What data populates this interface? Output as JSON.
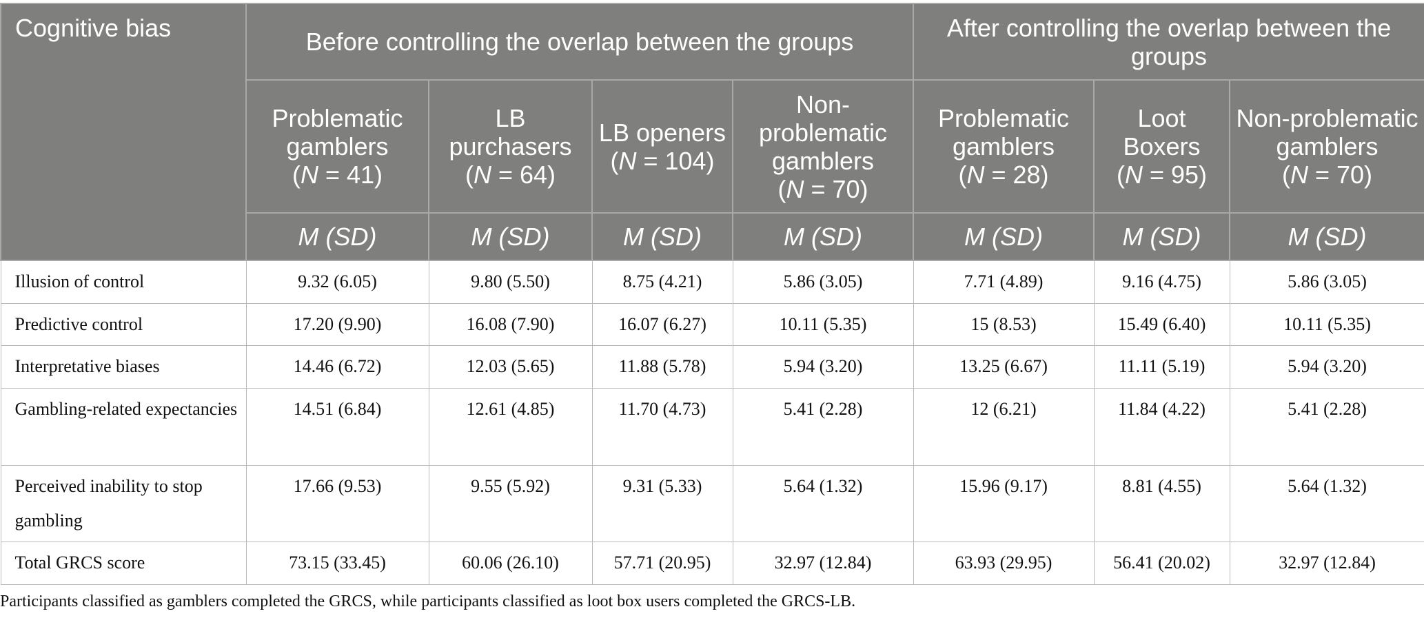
{
  "table": {
    "corner": "Cognitive bias",
    "groups": [
      "Before controlling the overlap between the groups",
      "After controlling the overlap between the groups"
    ],
    "subgroups": [
      {
        "name": "Problematic gamblers",
        "n": [
          "(",
          "N",
          " = 41)"
        ]
      },
      {
        "name": "LB purchasers",
        "n": [
          "(",
          "N",
          " = 64)"
        ]
      },
      {
        "name": "LB openers",
        "n": [
          "(",
          "N",
          " = 104)"
        ]
      },
      {
        "name": "Non-problematic gamblers",
        "n": [
          "(",
          "N",
          " = 70)"
        ]
      },
      {
        "name": "Problematic gamblers",
        "n": [
          "(",
          "N",
          " = 28)"
        ]
      },
      {
        "name": "Loot Boxers",
        "n": [
          "(",
          "N",
          " = 95)"
        ]
      },
      {
        "name": "Non-problematic gamblers",
        "n": [
          "(",
          "N",
          " = 70)"
        ]
      }
    ],
    "stats": [
      "M (SD)",
      "M (SD)",
      "M (SD)",
      "M (SD)",
      "M (SD)",
      "M (SD)",
      "M (SD)"
    ],
    "rows": [
      [
        "Illusion of control",
        "9.32 (6.05)",
        "9.80 (5.50)",
        "8.75 (4.21)",
        "5.86 (3.05)",
        "7.71 (4.89)",
        "9.16 (4.75)",
        "5.86 (3.05)"
      ],
      [
        "Predictive control",
        "17.20 (9.90)",
        "16.08 (7.90)",
        "16.07 (6.27)",
        "10.11 (5.35)",
        "15 (8.53)",
        "15.49 (6.40)",
        "10.11 (5.35)"
      ],
      [
        "Interpretative biases",
        "14.46 (6.72)",
        "12.03 (5.65)",
        "11.88 (5.78)",
        "5.94 (3.20)",
        "13.25 (6.67)",
        "11.11 (5.19)",
        "5.94 (3.20)"
      ],
      [
        "Gambling-related expectancies",
        "14.51 (6.84)",
        "12.61 (4.85)",
        "11.70 (4.73)",
        "5.41 (2.28)",
        "12 (6.21)",
        "11.84 (4.22)",
        "5.41 (2.28)"
      ],
      [
        "Perceived inability to stop gambling",
        "17.66 (9.53)",
        "9.55 (5.92)",
        "9.31 (5.33)",
        "5.64 (1.32)",
        "15.96 (9.17)",
        "8.81 (4.55)",
        "5.64 (1.32)"
      ],
      [
        "Total GRCS score",
        "73.15 (33.45)",
        "60.06 (26.10)",
        "57.71 (20.95)",
        "32.97 (12.84)",
        "63.93 (29.95)",
        "56.41 (20.02)",
        "32.97 (12.84)"
      ]
    ]
  },
  "footnote": "Participants classified as gamblers completed the GRCS, while participants classified as loot box users completed the GRCS-LB."
}
